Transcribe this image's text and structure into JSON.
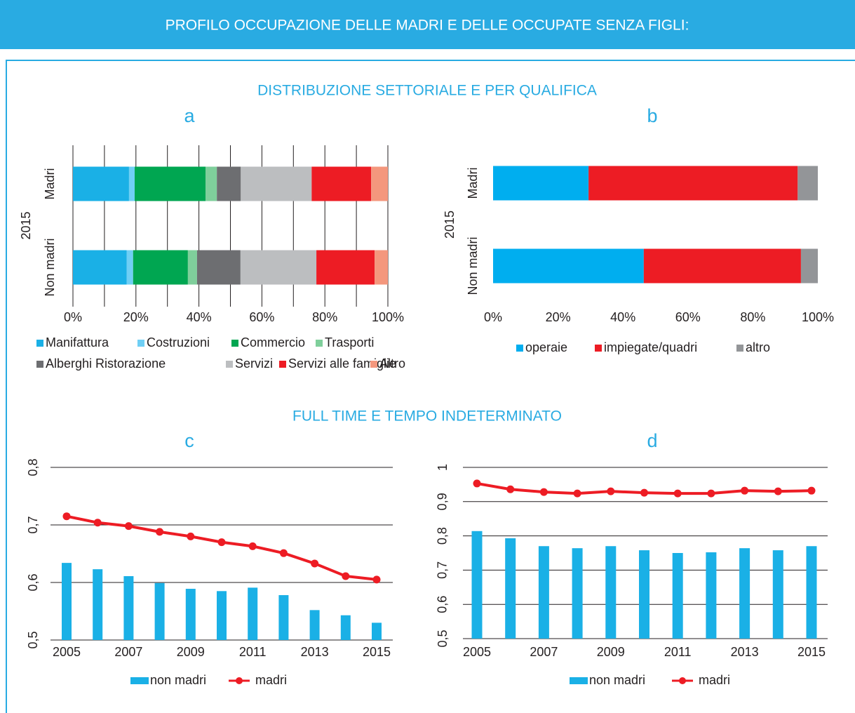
{
  "header_title": "PROFILO OCCUPAZIONE DELLE MADRI E DELLE OCCUPATE SENZA FIGLI:",
  "section_titles": [
    "DISTRIBUZIONE SETTORIALE E PER QUALIFICA",
    "FULL TIME E TEMPO INDETERMINATO"
  ],
  "chart_data": [
    {
      "type": "stacked_barh",
      "title": "a",
      "group_label": "2015",
      "categories": [
        "Madri",
        "Non madri"
      ],
      "series": [
        {
          "name": "Manifattura",
          "color": "#1ab0e6",
          "values": [
            17.8,
            17.1
          ]
        },
        {
          "name": "Costruzioni",
          "color": "#6fcff5",
          "values": [
            1.8,
            2.0
          ]
        },
        {
          "name": "Commercio",
          "color": "#00a651",
          "values": [
            22.5,
            17.4
          ]
        },
        {
          "name": "Trasporti",
          "color": "#7fcf9b",
          "values": [
            3.6,
            2.9
          ]
        },
        {
          "name": "Alberghi Ristorazione",
          "color": "#6d6e71",
          "values": [
            7.6,
            13.8
          ]
        },
        {
          "name": "Servizi",
          "color": "#bcbec0",
          "values": [
            22.5,
            24.1
          ]
        },
        {
          "name": "Servizi alle famiglie",
          "color": "#ed1c24",
          "values": [
            18.9,
            18.5
          ]
        },
        {
          "name": "Altro",
          "color": "#f4977d",
          "values": [
            5.3,
            4.2
          ]
        }
      ],
      "xlim": [
        0,
        100
      ],
      "xticks": [
        {
          "value": 0,
          "label": "0%"
        },
        {
          "value": 20,
          "label": "20%"
        },
        {
          "value": 40,
          "label": "40%"
        },
        {
          "value": 60,
          "label": "60%"
        },
        {
          "value": 80,
          "label": "80%"
        },
        {
          "value": 100,
          "label": "100%"
        }
      ],
      "minor_grid": [
        10,
        30,
        50,
        70,
        90
      ],
      "grid": true
    },
    {
      "type": "stacked_barh",
      "title": "b",
      "group_label": "2015",
      "categories": [
        "Madri",
        "Non madri"
      ],
      "series": [
        {
          "name": "operaie",
          "color": "#00aeef",
          "values": [
            29.4,
            46.4
          ]
        },
        {
          "name": "impiegate/quadri",
          "color": "#ed1c24",
          "values": [
            64.4,
            48.4
          ]
        },
        {
          "name": "altro",
          "color": "#939598",
          "values": [
            6.2,
            5.2
          ]
        }
      ],
      "xlim": [
        0,
        100
      ],
      "xticks": [
        {
          "value": 0,
          "label": "0%"
        },
        {
          "value": 20,
          "label": "20%"
        },
        {
          "value": 40,
          "label": "40%"
        },
        {
          "value": 60,
          "label": "60%"
        },
        {
          "value": 80,
          "label": "80%"
        },
        {
          "value": 100,
          "label": "100%"
        }
      ],
      "grid": false
    },
    {
      "type": "bar_line",
      "title": "c",
      "categories": [
        "2005",
        null,
        "2007",
        null,
        "2009",
        null,
        "2011",
        null,
        "2013",
        null,
        "2015"
      ],
      "series": [
        {
          "name": "non madri",
          "kind": "bar",
          "color": "#1ab0e6",
          "values": [
            0.634,
            0.623,
            0.611,
            0.599,
            0.589,
            0.585,
            0.591,
            0.578,
            0.552,
            0.543,
            0.53
          ]
        },
        {
          "name": "madri",
          "kind": "line",
          "color": "#ed1c24",
          "values": [
            0.715,
            0.704,
            0.698,
            0.688,
            0.68,
            0.67,
            0.663,
            0.651,
            0.633,
            0.611,
            0.605
          ]
        }
      ],
      "ylim": [
        0.5,
        0.8
      ],
      "yticks": [
        {
          "value": 0.5,
          "label": "0,5"
        },
        {
          "value": 0.6,
          "label": "0,6"
        },
        {
          "value": 0.7,
          "label": "0,7"
        },
        {
          "value": 0.8,
          "label": "0,8"
        }
      ],
      "grid": true
    },
    {
      "type": "bar_line",
      "title": "d",
      "categories": [
        "2005",
        null,
        "2007",
        null,
        "2009",
        null,
        "2011",
        null,
        "2013",
        null,
        "2015"
      ],
      "series": [
        {
          "name": "non madri",
          "kind": "bar",
          "color": "#1ab0e6",
          "values": [
            0.814,
            0.793,
            0.77,
            0.764,
            0.77,
            0.758,
            0.75,
            0.752,
            0.764,
            0.758,
            0.77
          ]
        },
        {
          "name": "madri",
          "kind": "line",
          "color": "#ed1c24",
          "values": [
            0.953,
            0.936,
            0.928,
            0.924,
            0.93,
            0.926,
            0.924,
            0.924,
            0.932,
            0.93,
            0.932
          ]
        }
      ],
      "ylim": [
        0.5,
        1
      ],
      "yticks": [
        {
          "value": 0.5,
          "label": "0,5"
        },
        {
          "value": 0.6,
          "label": "0,6"
        },
        {
          "value": 0.7,
          "label": "0,7"
        },
        {
          "value": 0.8,
          "label": "0,8"
        },
        {
          "value": 0.9,
          "label": "0,9"
        },
        1
      ],
      "grid": true
    }
  ]
}
